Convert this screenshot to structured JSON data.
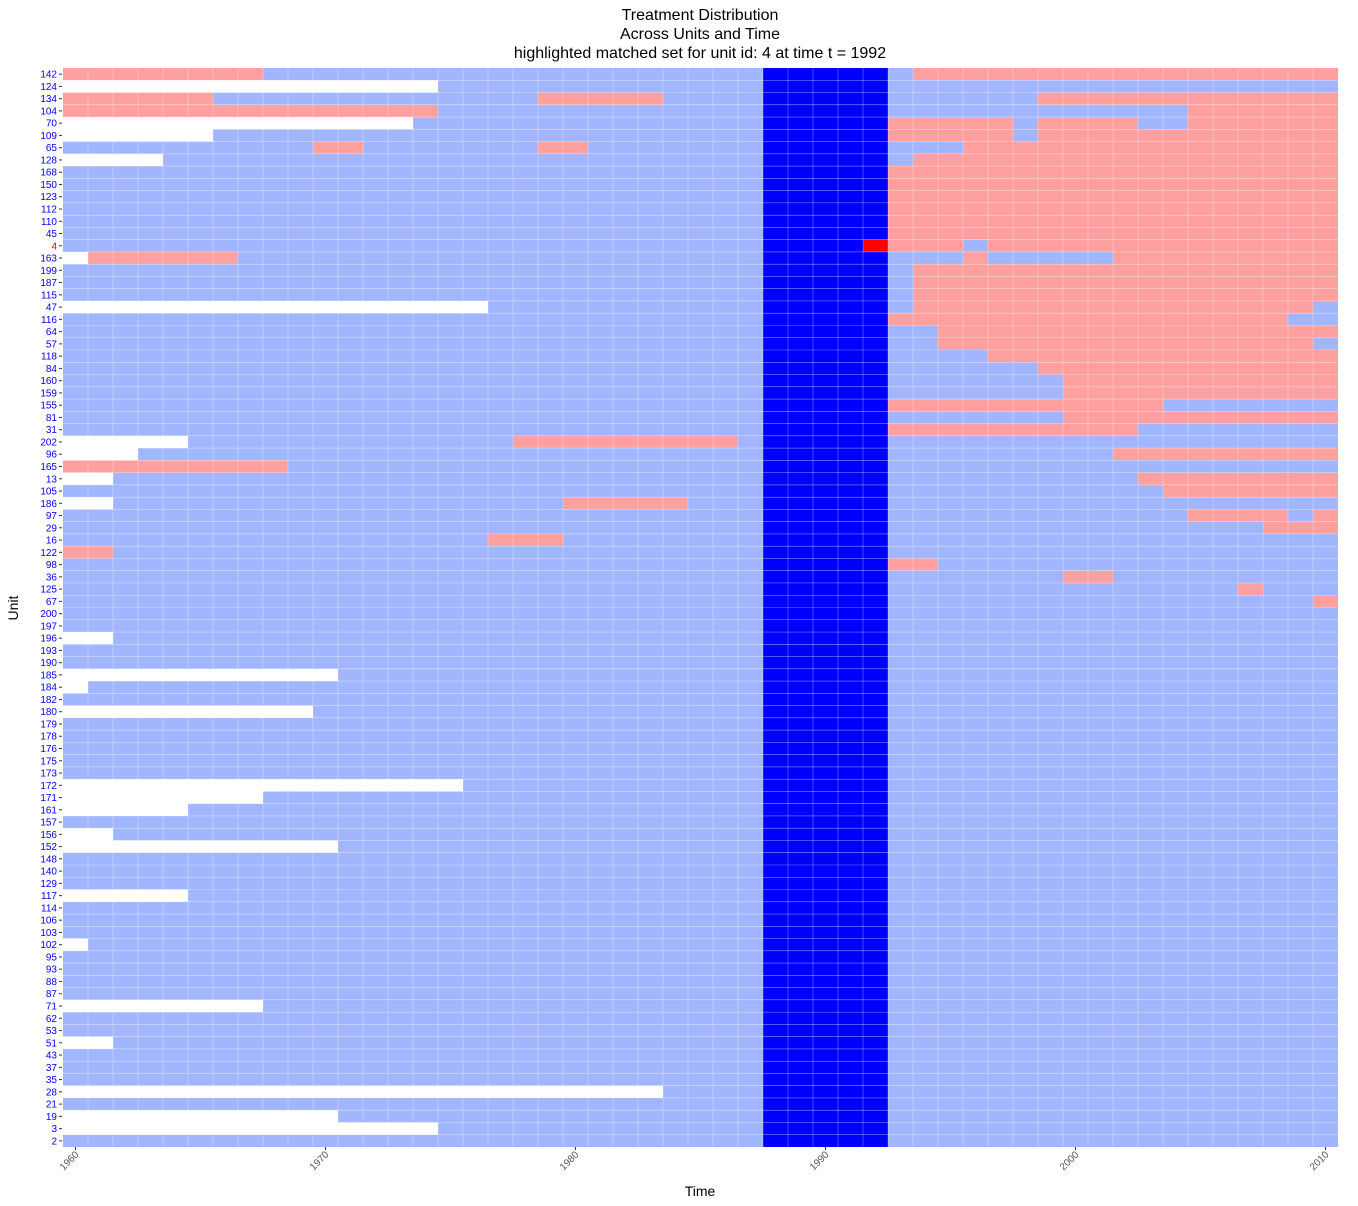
{
  "chart_data": {
    "type": "heatmap",
    "title_lines": [
      "Treatment Distribution",
      "Across Units and Time",
      "highlighted matched set for unit id: 4 at time t = 1992"
    ],
    "xlabel": "Time",
    "ylabel": "Unit",
    "x_range": [
      1960,
      2010
    ],
    "x_ticks": [
      1960,
      1970,
      1980,
      1990,
      2000,
      2010
    ],
    "units": [
      "142",
      "124",
      "134",
      "104",
      "70",
      "109",
      "65",
      "128",
      "168",
      "150",
      "123",
      "112",
      "110",
      "45",
      "4",
      "163",
      "199",
      "187",
      "115",
      "47",
      "116",
      "64",
      "57",
      "118",
      "84",
      "160",
      "159",
      "155",
      "81",
      "31",
      "202",
      "96",
      "165",
      "13",
      "105",
      "186",
      "97",
      "29",
      "16",
      "122",
      "98",
      "36",
      "125",
      "67",
      "200",
      "197",
      "196",
      "193",
      "190",
      "185",
      "184",
      "182",
      "180",
      "179",
      "178",
      "176",
      "175",
      "173",
      "172",
      "171",
      "161",
      "157",
      "156",
      "152",
      "148",
      "140",
      "129",
      "117",
      "114",
      "106",
      "103",
      "102",
      "95",
      "93",
      "88",
      "87",
      "71",
      "62",
      "53",
      "51",
      "43",
      "37",
      "35",
      "28",
      "21",
      "19",
      "3",
      "2"
    ],
    "highlight": {
      "unit": "4",
      "time": 1992,
      "lag_years": [
        1988,
        1989,
        1990,
        1991,
        1992
      ],
      "unit_treated_year": 1992
    },
    "colors": {
      "control": "#a2b6ff",
      "treated": "#ffa0a0",
      "matched_window": "#0000ff",
      "highlight_treated": "#ff0000",
      "highlight_label": "#ff0000",
      "unit_label": "#0000ff",
      "missing": "#ffffff"
    },
    "rows": {
      "142": {
        "start": 1960,
        "treated": [
          [
            1960,
            1967
          ],
          [
            1994,
            2010
          ]
        ]
      },
      "124": {
        "start": 1975,
        "treated": []
      },
      "134": {
        "start": 1960,
        "treated": [
          [
            1960,
            1965
          ],
          [
            1979,
            1983
          ],
          [
            1999,
            2010
          ]
        ]
      },
      "104": {
        "start": 1960,
        "treated": [
          [
            1960,
            1974
          ],
          [
            2005,
            2010
          ]
        ]
      },
      "70": {
        "start": 1974,
        "treated": [
          [
            1993,
            1997
          ],
          [
            1999,
            2002
          ],
          [
            2005,
            2010
          ]
        ]
      },
      "109": {
        "start": 1966,
        "treated": [
          [
            1993,
            1997
          ],
          [
            1999,
            2010
          ]
        ]
      },
      "65": {
        "start": 1960,
        "treated": [
          [
            1970,
            1971
          ],
          [
            1979,
            1980
          ],
          [
            1996,
            2010
          ]
        ]
      },
      "128": {
        "start": 1964,
        "treated": [
          [
            1994,
            2010
          ]
        ]
      },
      "168": {
        "start": 1960,
        "treated": [
          [
            1993,
            2010
          ]
        ]
      },
      "150": {
        "start": 1960,
        "treated": [
          [
            1993,
            2010
          ]
        ]
      },
      "123": {
        "start": 1960,
        "treated": [
          [
            1993,
            2010
          ]
        ]
      },
      "112": {
        "start": 1960,
        "treated": [
          [
            1993,
            2010
          ]
        ]
      },
      "110": {
        "start": 1960,
        "treated": [
          [
            1993,
            2010
          ]
        ]
      },
      "45": {
        "start": 1960,
        "treated": [
          [
            1993,
            2010
          ]
        ]
      },
      "4": {
        "start": 1960,
        "treated": [
          [
            1992,
            1995
          ],
          [
            1997,
            2010
          ]
        ]
      },
      "163": {
        "start": 1961,
        "treated": [
          [
            1961,
            1966
          ],
          [
            1996,
            1996
          ],
          [
            2002,
            2010
          ]
        ]
      },
      "199": {
        "start": 1960,
        "treated": [
          [
            1994,
            2010
          ]
        ]
      },
      "187": {
        "start": 1960,
        "treated": [
          [
            1994,
            2010
          ]
        ]
      },
      "115": {
        "start": 1960,
        "treated": [
          [
            1994,
            2010
          ]
        ]
      },
      "47": {
        "start": 1977,
        "treated": [
          [
            1994,
            1998
          ],
          [
            1999,
            2009
          ]
        ]
      },
      "116": {
        "start": 1960,
        "treated": [
          [
            1993,
            2008
          ]
        ]
      },
      "64": {
        "start": 1960,
        "treated": [
          [
            1995,
            2010
          ]
        ]
      },
      "57": {
        "start": 1960,
        "treated": [
          [
            1995,
            2009
          ]
        ]
      },
      "118": {
        "start": 1960,
        "treated": [
          [
            1997,
            2010
          ]
        ]
      },
      "84": {
        "start": 1960,
        "treated": [
          [
            1999,
            2010
          ]
        ]
      },
      "160": {
        "start": 1960,
        "treated": [
          [
            2000,
            2010
          ]
        ]
      },
      "159": {
        "start": 1960,
        "treated": [
          [
            2000,
            2010
          ]
        ]
      },
      "155": {
        "start": 1960,
        "treated": [
          [
            1993,
            2003
          ]
        ]
      },
      "81": {
        "start": 1960,
        "treated": [
          [
            2000,
            2010
          ]
        ]
      },
      "31": {
        "start": 1960,
        "treated": [
          [
            1993,
            2002
          ]
        ]
      },
      "202": {
        "start": 1965,
        "treated": [
          [
            1978,
            1986
          ]
        ]
      },
      "96": {
        "start": 1963,
        "treated": [
          [
            2002,
            2010
          ]
        ]
      },
      "165": {
        "start": 1960,
        "treated": [
          [
            1960,
            1968
          ]
        ]
      },
      "13": {
        "start": 1962,
        "treated": [
          [
            2003,
            2010
          ]
        ]
      },
      "105": {
        "start": 1960,
        "treated": [
          [
            2004,
            2010
          ]
        ]
      },
      "186": {
        "start": 1962,
        "treated": [
          [
            1980,
            1984
          ]
        ]
      },
      "97": {
        "start": 1960,
        "treated": [
          [
            2005,
            2008
          ],
          [
            2010,
            2010
          ]
        ]
      },
      "29": {
        "start": 1960,
        "treated": [
          [
            2008,
            2010
          ]
        ]
      },
      "16": {
        "start": 1960,
        "treated": [
          [
            1977,
            1979
          ]
        ]
      },
      "122": {
        "start": 1960,
        "treated": [
          [
            1960,
            1961
          ]
        ]
      },
      "98": {
        "start": 1960,
        "treated": [
          [
            1993,
            1994
          ]
        ]
      },
      "36": {
        "start": 1960,
        "treated": [
          [
            2000,
            2001
          ]
        ]
      },
      "125": {
        "start": 1960,
        "treated": [
          [
            2007,
            2007
          ]
        ]
      },
      "67": {
        "start": 1960,
        "treated": [
          [
            2010,
            2010
          ]
        ]
      },
      "200": {
        "start": 1960,
        "treated": []
      },
      "197": {
        "start": 1960,
        "treated": []
      },
      "196": {
        "start": 1962,
        "treated": []
      },
      "193": {
        "start": 1960,
        "treated": []
      },
      "190": {
        "start": 1960,
        "treated": []
      },
      "185": {
        "start": 1971,
        "treated": []
      },
      "184": {
        "start": 1961,
        "treated": []
      },
      "182": {
        "start": 1960,
        "treated": []
      },
      "180": {
        "start": 1970,
        "treated": []
      },
      "179": {
        "start": 1960,
        "treated": []
      },
      "178": {
        "start": 1960,
        "treated": []
      },
      "176": {
        "start": 1960,
        "treated": []
      },
      "175": {
        "start": 1960,
        "treated": []
      },
      "173": {
        "start": 1960,
        "treated": []
      },
      "172": {
        "start": 1976,
        "treated": []
      },
      "171": {
        "start": 1968,
        "treated": []
      },
      "161": {
        "start": 1965,
        "treated": []
      },
      "157": {
        "start": 1960,
        "treated": []
      },
      "156": {
        "start": 1962,
        "treated": []
      },
      "152": {
        "start": 1971,
        "treated": []
      },
      "148": {
        "start": 1960,
        "treated": []
      },
      "140": {
        "start": 1960,
        "treated": []
      },
      "129": {
        "start": 1960,
        "treated": []
      },
      "117": {
        "start": 1965,
        "treated": []
      },
      "114": {
        "start": 1960,
        "treated": []
      },
      "106": {
        "start": 1960,
        "treated": []
      },
      "103": {
        "start": 1960,
        "treated": []
      },
      "102": {
        "start": 1961,
        "treated": []
      },
      "95": {
        "start": 1960,
        "treated": []
      },
      "93": {
        "start": 1960,
        "treated": []
      },
      "88": {
        "start": 1960,
        "treated": []
      },
      "87": {
        "start": 1960,
        "treated": []
      },
      "71": {
        "start": 1968,
        "treated": []
      },
      "62": {
        "start": 1960,
        "treated": []
      },
      "53": {
        "start": 1960,
        "treated": []
      },
      "51": {
        "start": 1962,
        "treated": []
      },
      "43": {
        "start": 1960,
        "treated": []
      },
      "37": {
        "start": 1960,
        "treated": []
      },
      "35": {
        "start": 1960,
        "treated": []
      },
      "28": {
        "start": 1984,
        "treated": []
      },
      "21": {
        "start": 1960,
        "treated": []
      },
      "19": {
        "start": 1971,
        "treated": []
      },
      "3": {
        "start": 1975,
        "treated": []
      },
      "2": {
        "start": 1960,
        "treated": []
      }
    }
  }
}
